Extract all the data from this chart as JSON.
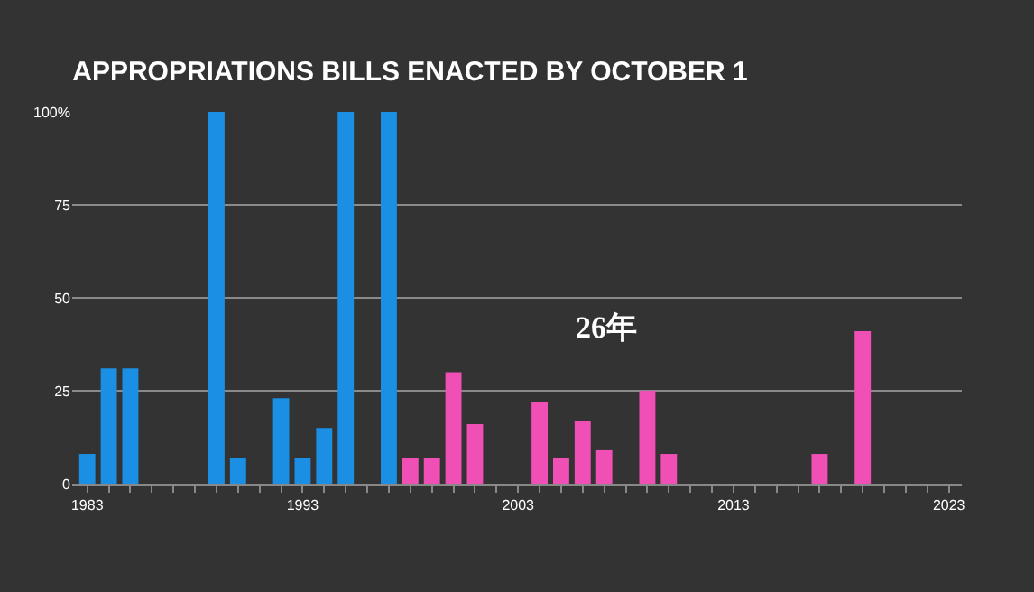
{
  "chart_data": {
    "type": "bar",
    "title": "APPROPRIATIONS BILLS ENACTED BY OCTOBER 1",
    "x": [
      1983,
      1984,
      1985,
      1989,
      1990,
      1992,
      1993,
      1994,
      1995,
      1997,
      1998,
      1999,
      2000,
      2001,
      2004,
      2005,
      2006,
      2007,
      2009,
      2010,
      2017,
      2019
    ],
    "values": [
      8,
      31,
      31,
      100,
      7,
      23,
      7,
      15,
      100,
      100,
      7,
      7,
      30,
      16,
      22,
      7,
      17,
      9,
      25,
      8,
      8,
      41
    ],
    "colors": [
      "#1a8fe3",
      "#1a8fe3",
      "#1a8fe3",
      "#1a8fe3",
      "#1a8fe3",
      "#1a8fe3",
      "#1a8fe3",
      "#1a8fe3",
      "#1a8fe3",
      "#1a8fe3",
      "#f04fb5",
      "#f04fb5",
      "#f04fb5",
      "#f04fb5",
      "#f04fb5",
      "#f04fb5",
      "#f04fb5",
      "#f04fb5",
      "#f04fb5",
      "#f04fb5",
      "#f04fb5",
      "#f04fb5"
    ],
    "xlim": [
      1982.3,
      2023.6
    ],
    "xticks": [
      1983,
      {
        "value": 1984,
        "label": null
      },
      {
        "value": 1985,
        "label": null
      },
      {
        "value": 1986,
        "label": null
      },
      {
        "value": 1987,
        "label": null
      },
      {
        "value": 1988,
        "label": null
      },
      {
        "value": 1989,
        "label": null
      },
      {
        "value": 1990,
        "label": null
      },
      {
        "value": 1991,
        "label": null
      },
      {
        "value": 1992,
        "label": null
      },
      1993,
      {
        "value": 1994,
        "label": null
      },
      {
        "value": 1995,
        "label": null
      },
      {
        "value": 1996,
        "label": null
      },
      {
        "value": 1997,
        "label": null
      },
      {
        "value": 1998,
        "label": null
      },
      {
        "value": 1999,
        "label": null
      },
      {
        "value": 2000,
        "label": null
      },
      {
        "value": 2001,
        "label": null
      },
      {
        "value": 2002,
        "label": null
      },
      2003,
      {
        "value": 2004,
        "label": null
      },
      {
        "value": 2005,
        "label": null
      },
      {
        "value": 2006,
        "label": null
      },
      {
        "value": 2007,
        "label": null
      },
      {
        "value": 2008,
        "label": null
      },
      {
        "value": 2009,
        "label": null
      },
      {
        "value": 2010,
        "label": null
      },
      {
        "value": 2011,
        "label": null
      },
      {
        "value": 2012,
        "label": null
      },
      2013,
      {
        "value": 2014,
        "label": null
      },
      {
        "value": 2015,
        "label": null
      },
      {
        "value": 2016,
        "label": null
      },
      {
        "value": 2017,
        "label": null
      },
      {
        "value": 2018,
        "label": null
      },
      {
        "value": 2019,
        "label": null
      },
      {
        "value": 2020,
        "label": null
      },
      {
        "value": 2021,
        "label": null
      },
      {
        "value": 2022,
        "label": null
      },
      2023
    ],
    "ylim": [
      0,
      100
    ],
    "yticks": [
      0,
      25,
      50,
      75,
      {
        "value": 100,
        "label": "100%"
      }
    ],
    "grid": "y",
    "annotations": [
      "26年"
    ]
  }
}
